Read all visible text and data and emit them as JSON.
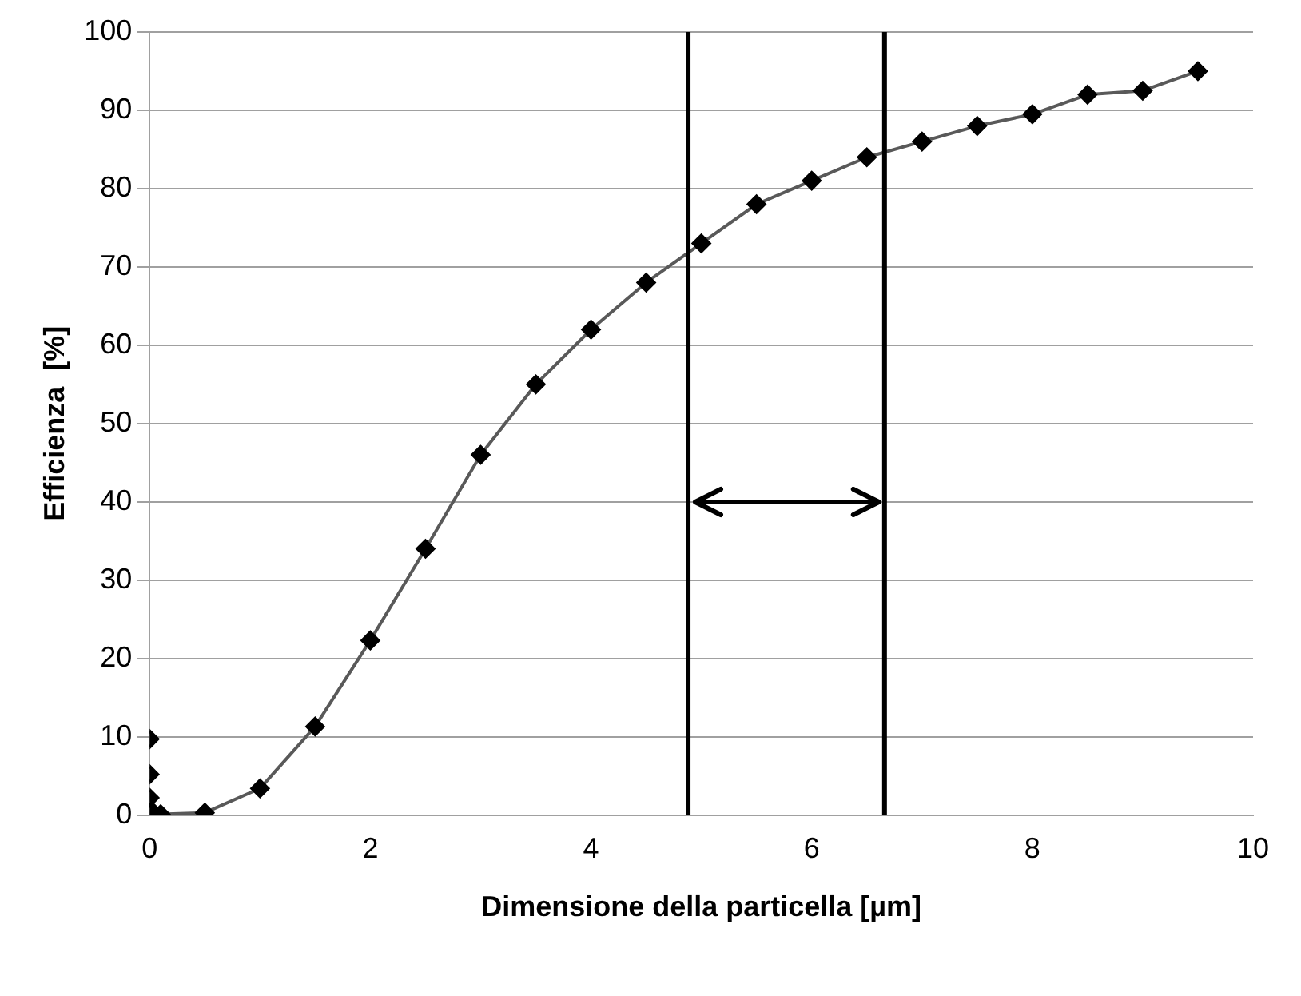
{
  "chart_data": {
    "type": "line",
    "xlabel": "Dimensione della particella [µm]",
    "ylabel": "Efficienza  [%]",
    "series": [
      {
        "type": "scatter",
        "color": "#000000",
        "x": [
          0,
          0,
          0
        ],
        "values": [
          9.7,
          5.2,
          2.2
        ]
      },
      {
        "color": "#000000",
        "x": [
          0.02,
          0.1,
          0.5,
          1,
          1.5,
          2,
          2.5,
          3,
          3.5,
          4,
          4.5,
          5,
          5.5,
          6,
          6.5,
          7,
          7.5,
          8,
          8.5,
          9,
          9.5
        ],
        "values": [
          0.5,
          0.1,
          0.3,
          3.4,
          11.3,
          22.3,
          34,
          46,
          55,
          62,
          68,
          73,
          78,
          81,
          84,
          86,
          88,
          89.5,
          92,
          92.5,
          95
        ]
      }
    ],
    "xlim": [
      0,
      10
    ],
    "xticks": [
      0,
      2,
      4,
      6,
      8,
      10
    ],
    "ylim": [
      0,
      100
    ],
    "yticks": [
      0,
      10,
      20,
      30,
      40,
      50,
      60,
      70,
      80,
      90,
      100
    ],
    "grid": "y",
    "legend": false,
    "marker": "diamond",
    "line_style": "solid",
    "ref_lines": [
      {
        "axis": "x",
        "value": 4.88,
        "color": "#000000"
      },
      {
        "axis": "x",
        "value": 6.66,
        "color": "#000000"
      }
    ]
  }
}
